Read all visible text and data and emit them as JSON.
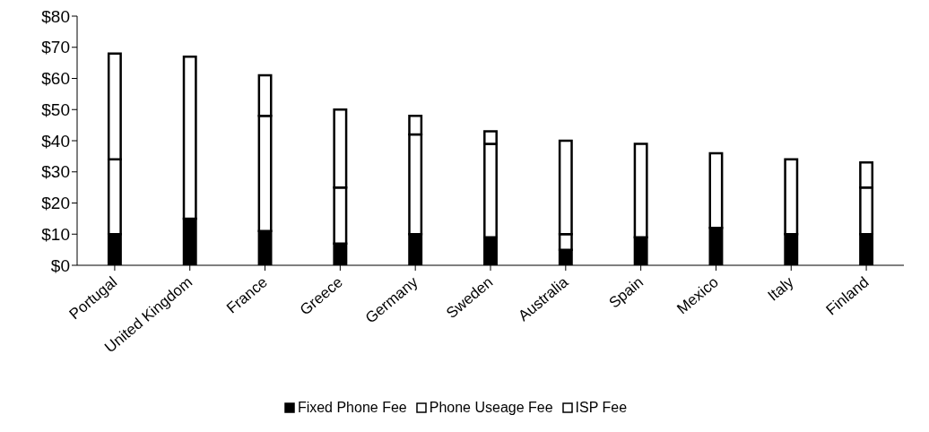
{
  "chart_data": {
    "type": "bar",
    "stacked": true,
    "categories": [
      "Portugal",
      "United Kingdom",
      "France",
      "Greece",
      "Germany",
      "Sweden",
      "Australia",
      "Spain",
      "Mexico",
      "Italy",
      "Finland"
    ],
    "series": [
      {
        "name": "Fixed Phone Fee",
        "color": "#000000",
        "values": [
          10,
          15,
          11,
          7,
          10,
          9,
          5,
          9,
          12,
          10,
          10
        ]
      },
      {
        "name": "Phone Useage Fee",
        "color": "#ffffff",
        "values": [
          24,
          52,
          37,
          18,
          32,
          30,
          5,
          30,
          24,
          24,
          15
        ]
      },
      {
        "name": "ISP Fee",
        "color": "#ffffff",
        "values": [
          34,
          0,
          13,
          25,
          6,
          4,
          30,
          0,
          0,
          0,
          8
        ]
      }
    ],
    "ylim": [
      0,
      80
    ],
    "yticks": [
      {
        "value": 0,
        "label": "$0"
      },
      {
        "value": 10,
        "label": "$10"
      },
      {
        "value": 20,
        "label": "$20"
      },
      {
        "value": 30,
        "label": "$30"
      },
      {
        "value": 40,
        "label": "$40"
      },
      {
        "value": 50,
        "label": "$50"
      },
      {
        "value": 60,
        "label": "$60"
      },
      {
        "value": 70,
        "label": "$70"
      },
      {
        "value": 80,
        "label": "$80"
      }
    ],
    "grid": false,
    "legend": "bottom"
  }
}
